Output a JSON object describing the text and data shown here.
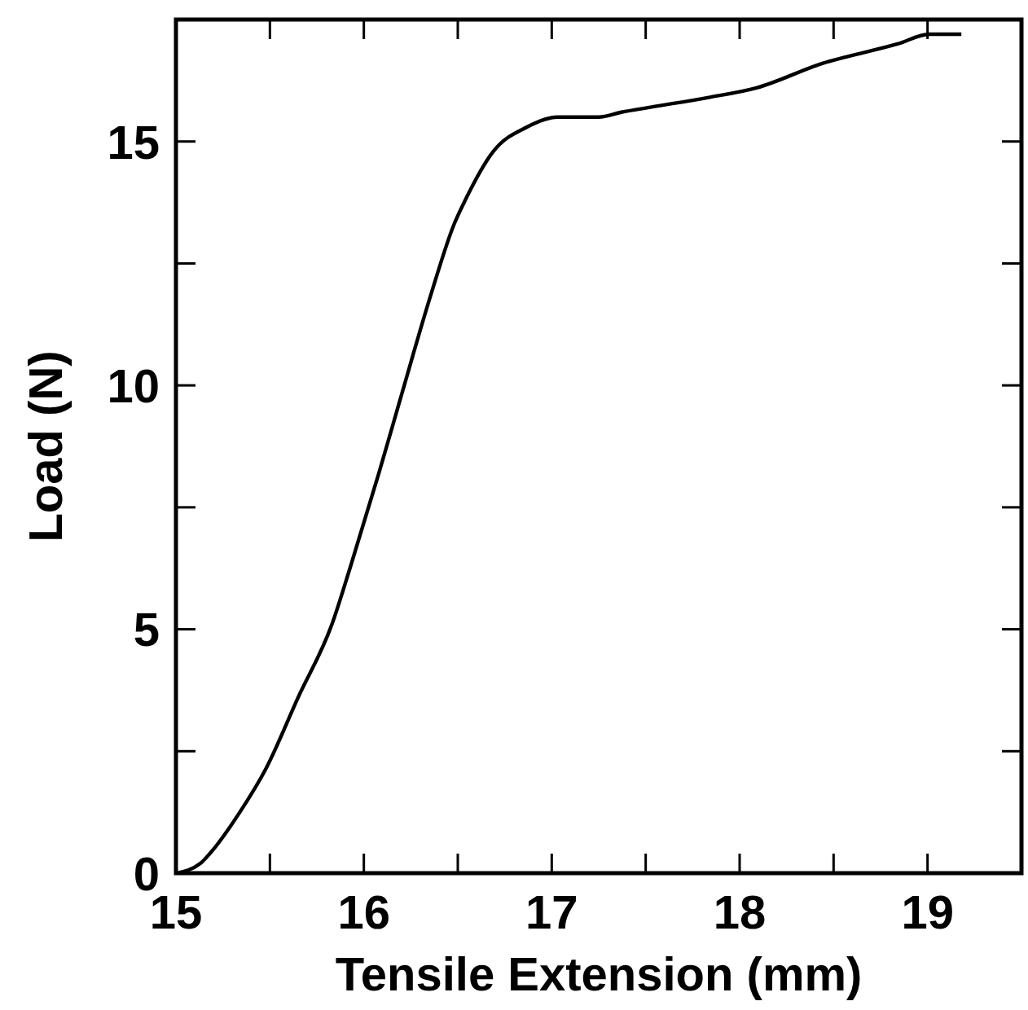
{
  "chart_data": {
    "type": "line",
    "xlabel": "Tensile Extension (mm)",
    "ylabel": "Load (N)",
    "xlim": [
      15,
      19.5
    ],
    "ylim": [
      0,
      17.5
    ],
    "xticks": [
      15,
      {
        "value": 15.5,
        "label": null
      },
      16,
      {
        "value": 16.5,
        "label": null
      },
      17,
      {
        "value": 17.5,
        "label": null
      },
      18,
      {
        "value": 18.5,
        "label": null
      },
      19
    ],
    "yticks": [
      0,
      {
        "value": 2.5,
        "label": null
      },
      5,
      {
        "value": 7.5,
        "label": null
      },
      10,
      {
        "value": 12.5,
        "label": null
      },
      15
    ],
    "grid": false,
    "marker": "none",
    "line_style": "solid",
    "series": [
      {
        "color": "#000000",
        "x": [
          15,
          15.13,
          15.18,
          15.34,
          15.48,
          15.65,
          15.83,
          15.93,
          16.08,
          16.2,
          16.36,
          16.48,
          16.54,
          16.69,
          16.87,
          17.03,
          17.25,
          17.37,
          17.52,
          17.83,
          18.09,
          18.44,
          18.84,
          19.01,
          19.18
        ],
        "values": [
          0,
          0.2,
          0.4,
          1.25,
          2.15,
          3.6,
          5.1,
          6.3,
          8.2,
          9.8,
          11.9,
          13.3,
          13.8,
          14.8,
          15.3,
          15.5,
          15.5,
          15.6,
          15.7,
          15.9,
          16.1,
          16.6,
          17,
          17.2,
          17.2
        ]
      }
    ]
  }
}
